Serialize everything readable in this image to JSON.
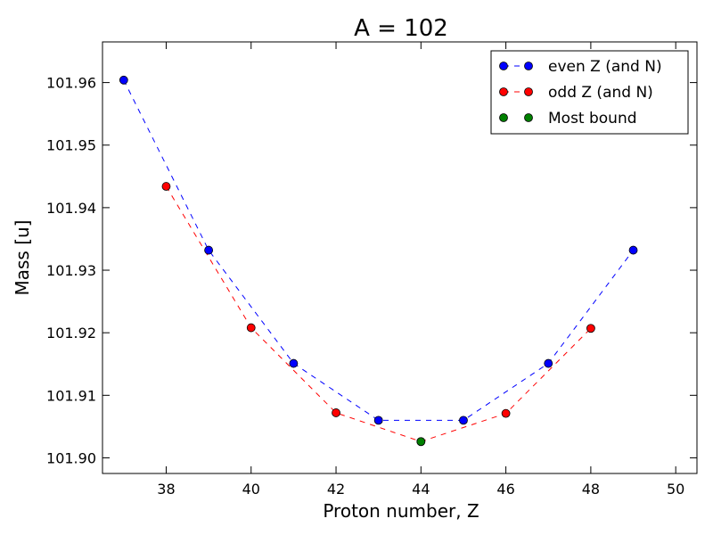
{
  "chart_data": {
    "type": "line",
    "title": "A = 102",
    "xlabel": "Proton number, Z",
    "ylabel": "Mass [u]",
    "xlim": [
      36.5,
      50.5
    ],
    "ylim": [
      101.8975,
      101.9665
    ],
    "xticks": [
      38,
      40,
      42,
      44,
      46,
      48,
      50
    ],
    "yticks": [
      101.9,
      101.91,
      101.92,
      101.93,
      101.94,
      101.95,
      101.96
    ],
    "ytick_labels": [
      "101.90",
      "101.91",
      "101.92",
      "101.93",
      "101.94",
      "101.95",
      "101.96"
    ],
    "grid": false,
    "legend_position": "top-right",
    "series": [
      {
        "name": "even Z (and N)",
        "color": "#0000ff",
        "linestyle": "dashed",
        "marker": "circle",
        "x": [
          37,
          39,
          41,
          43,
          45,
          47,
          49
        ],
        "y": [
          101.9604,
          101.9332,
          101.9151,
          101.906,
          101.906,
          101.9151,
          101.9332
        ]
      },
      {
        "name": "odd Z (and N)",
        "color": "#ff0000",
        "linestyle": "dashed",
        "marker": "circle",
        "x": [
          38,
          40,
          42,
          44,
          46,
          48
        ],
        "y": [
          101.9434,
          101.9208,
          101.9072,
          101.9026,
          101.9071,
          101.9207
        ]
      },
      {
        "name": "Most bound",
        "color": "#008000",
        "linestyle": "none",
        "marker": "circle",
        "x": [
          44
        ],
        "y": [
          101.9026
        ]
      }
    ]
  }
}
